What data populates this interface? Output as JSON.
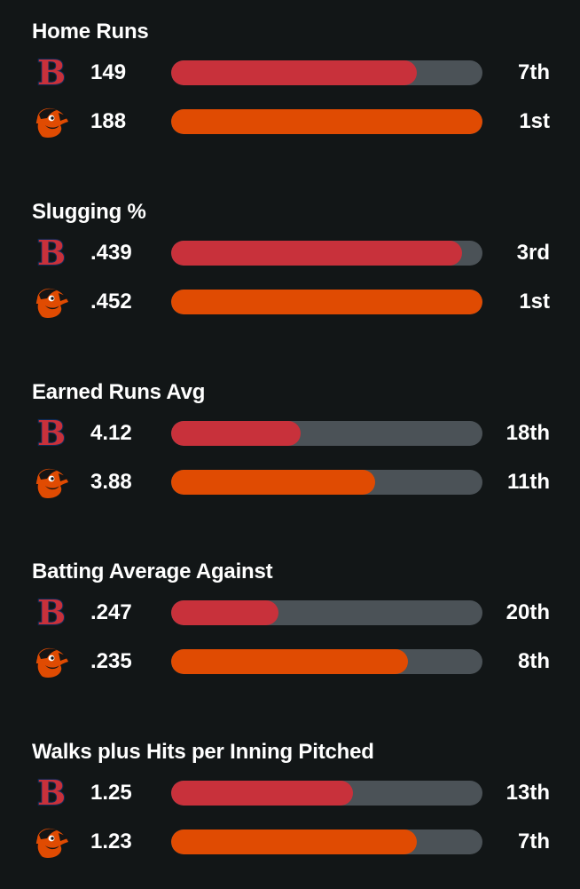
{
  "colors": {
    "background": "#121617",
    "track": "#4b5257",
    "red_sox": "#c8313b",
    "orioles": "#e04b02"
  },
  "teams": {
    "red_sox": {
      "logo_icon": "red-sox-b-logo-icon"
    },
    "orioles": {
      "logo_icon": "orioles-bird-logo-icon"
    }
  },
  "sections": [
    {
      "title": "Home Runs",
      "red_sox": {
        "value": "149",
        "rank": "7th",
        "fill": 0.79
      },
      "orioles": {
        "value": "188",
        "rank": "1st",
        "fill": 1.0
      }
    },
    {
      "title": "Slugging %",
      "red_sox": {
        "value": ".439",
        "rank": "3rd",
        "fill": 0.935
      },
      "orioles": {
        "value": ".452",
        "rank": "1st",
        "fill": 1.0
      }
    },
    {
      "title": "Earned Runs Avg",
      "red_sox": {
        "value": "4.12",
        "rank": "18th",
        "fill": 0.415
      },
      "orioles": {
        "value": "3.88",
        "rank": "11th",
        "fill": 0.655
      }
    },
    {
      "title": "Batting Average Against",
      "red_sox": {
        "value": ".247",
        "rank": "20th",
        "fill": 0.345
      },
      "orioles": {
        "value": ".235",
        "rank": "8th",
        "fill": 0.76
      }
    },
    {
      "title": "Walks plus Hits per Inning Pitched",
      "red_sox": {
        "value": "1.25",
        "rank": "13th",
        "fill": 0.585
      },
      "orioles": {
        "value": "1.23",
        "rank": "7th",
        "fill": 0.79
      }
    }
  ]
}
